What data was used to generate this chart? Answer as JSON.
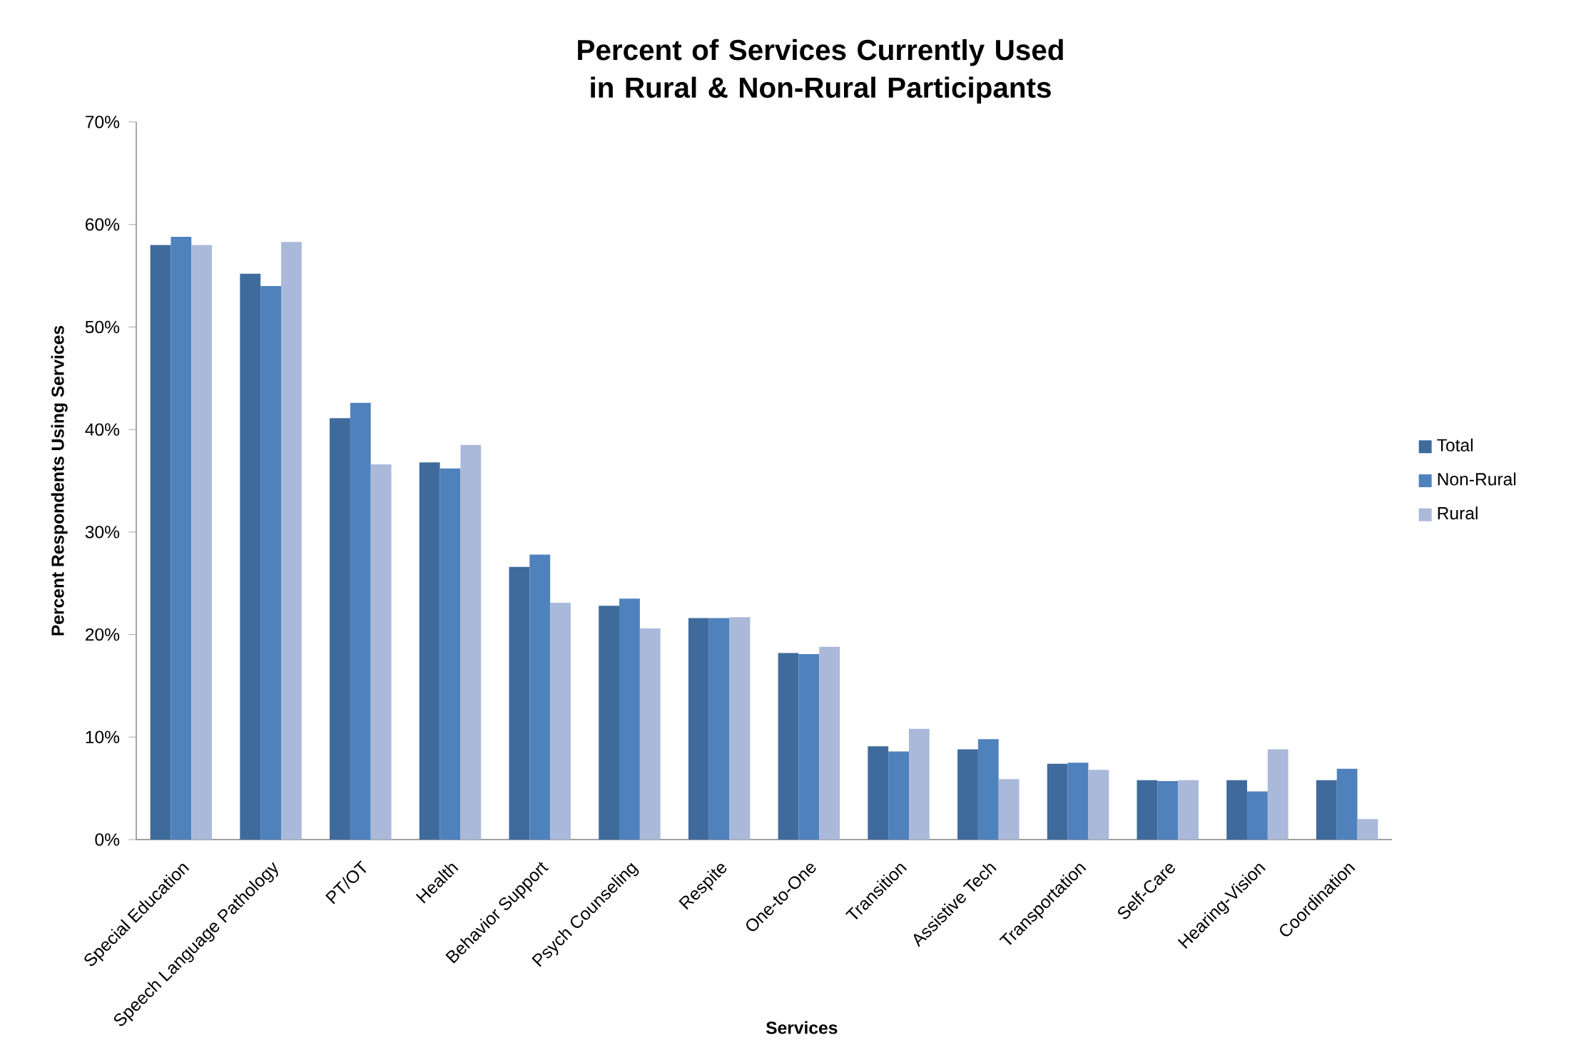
{
  "chart_data": {
    "type": "bar",
    "title": "Percent of Services Currently Used in Rural & Non-Rural Participants",
    "xlabel": "Services",
    "ylabel": "Percent Respondents Using Services",
    "categories": [
      "Special Education",
      "Speech Language Pathology",
      "PT/OT",
      "Health",
      "Behavior Support",
      "Psych Counseling",
      "Respite",
      "One-to-One",
      "Transition",
      "Assistive Tech",
      "Transportation",
      "Self-Care",
      "Hearing-Vision",
      "Coordination"
    ],
    "series": [
      {
        "name": "Total",
        "color": "#3f6a9c",
        "values": [
          58.0,
          55.2,
          41.1,
          36.8,
          26.6,
          22.8,
          21.6,
          18.2,
          9.1,
          8.8,
          7.4,
          5.8,
          5.8,
          5.8
        ]
      },
      {
        "name": "Non-Rural",
        "color": "#4f81bd",
        "values": [
          58.8,
          54.0,
          42.6,
          36.2,
          27.8,
          23.5,
          21.6,
          18.1,
          8.6,
          9.8,
          7.5,
          5.7,
          4.7,
          6.9
        ]
      },
      {
        "name": "Rural",
        "color": "#aab9d9",
        "values": [
          58.0,
          58.3,
          36.6,
          38.5,
          23.1,
          20.6,
          21.7,
          18.8,
          10.8,
          5.9,
          6.8,
          5.8,
          8.8,
          2.0
        ]
      }
    ],
    "ylim": [
      0,
      70
    ],
    "yticks": [
      {
        "value": 0,
        "label": "0%"
      },
      {
        "value": 10,
        "label": "10%"
      },
      {
        "value": 20,
        "label": "20%"
      },
      {
        "value": 30,
        "label": "30%"
      },
      {
        "value": 40,
        "label": "40%"
      },
      {
        "value": 50,
        "label": "50%"
      },
      {
        "value": 60,
        "label": "60%"
      },
      {
        "value": 70,
        "label": "70%"
      }
    ],
    "grid": false,
    "legend": "right"
  }
}
